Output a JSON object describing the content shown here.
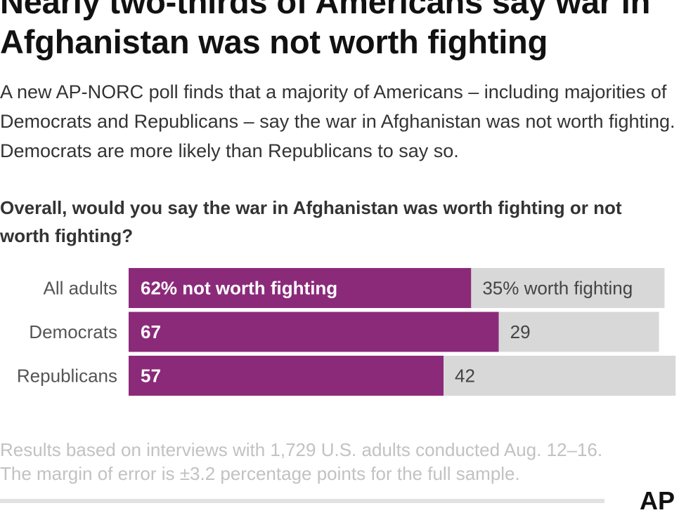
{
  "headline": "Nearly two-thirds of Americans say war in Afghanistan was not worth fighting",
  "subhead": "A new AP-NORC poll finds that a majority of Americans – including majorities of Democrats and Republicans – say the war in Afghanistan was not worth fighting. Democrats are more likely than Republicans to say so.",
  "question": "Overall, would you say the war in Afghanistan was worth fighting or not worth fighting?",
  "footnote_line1": "Results based on interviews with 1,729 U.S. adults conducted Aug. 12–16.",
  "footnote_line2": "The margin of error is ±3.2 percentage points for the full sample.",
  "logo": "AP",
  "colors": {
    "not_worth": "#8c2a7a",
    "worth": "#d8d8d8",
    "not_worth_label": "#ffffff",
    "worth_label": "#444444",
    "category_label": "#555555"
  },
  "chart_data": {
    "type": "bar",
    "orientation": "horizontal",
    "stacked": true,
    "categories": [
      "All adults",
      "Democrats",
      "Republicans"
    ],
    "series": [
      {
        "values": [
          62,
          67,
          57
        ],
        "labels": [
          "62% not worth fighting",
          "67",
          "57"
        ]
      },
      {
        "values": [
          35,
          29,
          42
        ],
        "labels": [
          "35% worth fighting",
          "29",
          "42"
        ]
      }
    ],
    "xlim": [
      0,
      100
    ],
    "grid": false,
    "legend": "none"
  }
}
